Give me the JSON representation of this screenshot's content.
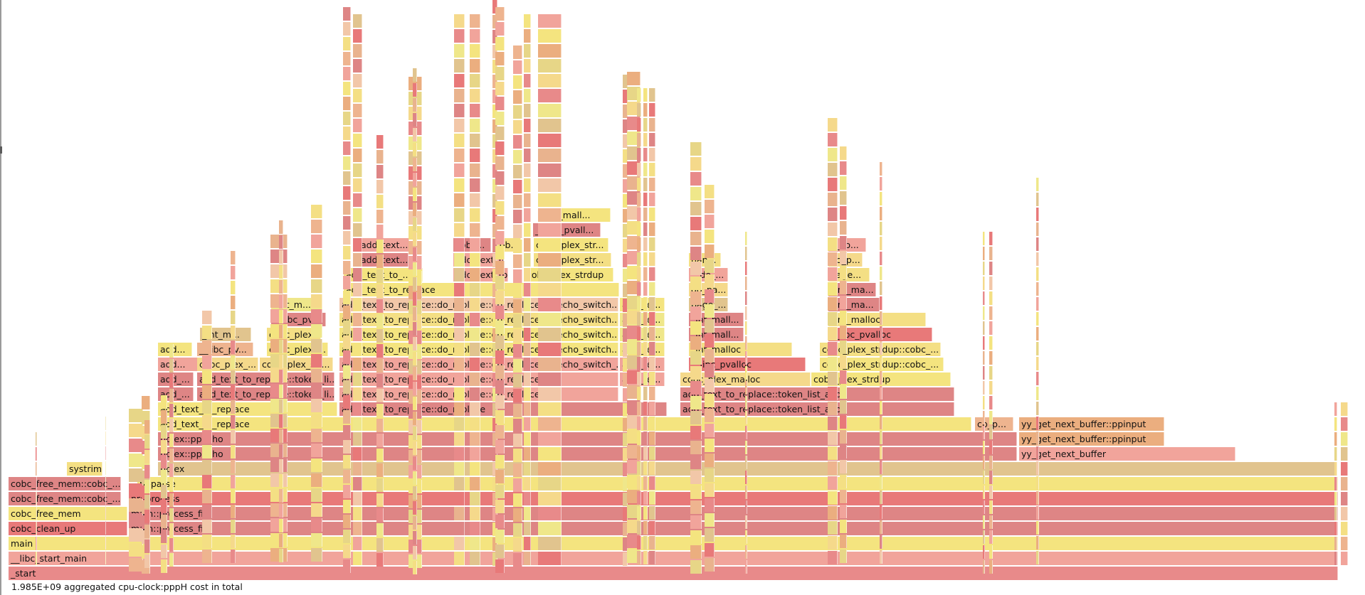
{
  "status": {
    "total_cost": "1.985E+09 aggregated cpu-clock:pppH cost in total"
  },
  "palette": [
    "#f1a49b",
    "#e88a8a",
    "#de8585",
    "#f4e47f",
    "#efe78a",
    "#f2c7a8",
    "#ebae7f",
    "#e1c48e",
    "#f4df84",
    "#e7d687",
    "#e87979",
    "#eeb48f",
    "#f5d98b",
    "#e9b38e"
  ],
  "frames": [
    {
      "label": "_start",
      "level": 0
    },
    {
      "label": "__libc_start_main",
      "level": 1
    },
    {
      "label": "main",
      "level": 2
    },
    {
      "label": "cobc_clean_up",
      "level": 3
    },
    {
      "label": "main::process_file",
      "level": 3
    },
    {
      "label": "cobc_free_mem",
      "level": 4
    },
    {
      "label": "main::process_file",
      "level": 4
    },
    {
      "label": "cobc_free_mem::cobc_...",
      "level": 5
    },
    {
      "label": "preprocess",
      "level": 5
    },
    {
      "label": "cobc_free_mem::cobc_...",
      "level": 6
    },
    {
      "label": "ppparse",
      "level": 6
    },
    {
      "label": "systrim",
      "level": 7
    },
    {
      "label": "pplex",
      "level": 7
    },
    {
      "label": "pplex::ppecho",
      "level": 8
    },
    {
      "label": "yy_get_next_buffer",
      "level": 8
    },
    {
      "label": "pplex::ppecho",
      "level": 9
    },
    {
      "label": "yy_get_next_buffer::ppinput",
      "level": 9
    },
    {
      "label": "add_text_to_replace",
      "level": 10
    },
    {
      "label": "cb_p...",
      "level": 10
    },
    {
      "label": "yy_get_next_buffer::ppinput",
      "level": 10
    },
    {
      "label": "add_text_to_replace",
      "level": 11
    },
    {
      "label": "add_text_to_replace::do_replace",
      "level": 11
    },
    {
      "label": "add_text_to_replace::token_list_add",
      "level": 11
    },
    {
      "label": "add_...",
      "level": 12
    },
    {
      "label": "add_text_to_replace::token_li...",
      "level": 12
    },
    {
      "label": "add_text_to_replace::do_replace::do_replace",
      "level": 12
    },
    {
      "label": "add_text_to_replace::token_list_add",
      "level": 12
    },
    {
      "label": "add_...",
      "level": 13
    },
    {
      "label": "add_text_to_replace::token_li...",
      "level": 13
    },
    {
      "label": "add_text_to_replace::do_replace::do_replace",
      "level": 13
    },
    {
      "label": "add_te...",
      "level": 13
    },
    {
      "label": "cobc_plex_malloc",
      "level": 13
    },
    {
      "label": "cobc_plex_strdup",
      "level": 13
    },
    {
      "label": "add...",
      "level": 14
    },
    {
      "label": "cobc_plex_...",
      "level": 14
    },
    {
      "label": "cobc_plex_str...",
      "level": 14
    },
    {
      "label": "add_text_to_replace::do_replace::do_replace::ppecho_switch_...",
      "level": 14
    },
    {
      "label": "add_te...",
      "level": 14
    },
    {
      "label": "__libc_pvalloc",
      "level": 14
    },
    {
      "label": "cobc_plex_strdup::cobc_...",
      "level": 14
    },
    {
      "label": "add...",
      "level": 15
    },
    {
      "label": "__libc_pv...",
      "level": 15
    },
    {
      "label": "cobc_plex_...",
      "level": 15
    },
    {
      "label": "add_text_to_replace::do_replace::do_replace::ppecho_switch...",
      "level": 15
    },
    {
      "label": "add_te...",
      "level": 15
    },
    {
      "label": "_int_malloc",
      "level": 15
    },
    {
      "label": "cobc_plex_strdup::cobc_...",
      "level": 15
    },
    {
      "label": "_int_m...",
      "level": 16
    },
    {
      "label": "cobc_plex_...",
      "level": 16
    },
    {
      "label": "add_text_to_replace::do_replace::do_replace::ppecho_switch...",
      "level": 16
    },
    {
      "label": "add_te...",
      "level": 16
    },
    {
      "label": "_int_mall...",
      "level": 16
    },
    {
      "label": "__libc_pvalloc",
      "level": 16
    },
    {
      "label": "__libc_pv...",
      "level": 17
    },
    {
      "label": "add_text_to_replace::do_replace::do_replace::ppecho_switch...",
      "level": 17
    },
    {
      "label": "add_te...",
      "level": 17
    },
    {
      "label": "_int_mall...",
      "level": 17
    },
    {
      "label": "_int_malloc",
      "level": 17
    },
    {
      "label": "_int_m...",
      "level": 18
    },
    {
      "label": "add_text_to_replace::do_replace::do_replace::ppecho_switch...",
      "level": 18
    },
    {
      "label": "add_te...",
      "level": 18
    },
    {
      "label": "page_...",
      "level": 18
    },
    {
      "label": "_int_ma...",
      "level": 18
    },
    {
      "label": "add_text_to_replace",
      "level": 19
    },
    {
      "label": "do_pa...",
      "level": 19
    },
    {
      "label": "_int_ma...",
      "level": 19
    },
    {
      "label": "add_text_to_...",
      "level": 20
    },
    {
      "label": "add_text_to_...",
      "level": 20
    },
    {
      "label": "cobc_plex_strdup",
      "level": 20
    },
    {
      "label": "__do_...",
      "level": 20
    },
    {
      "label": "page...",
      "level": 20
    },
    {
      "label": "add_text...",
      "level": 21
    },
    {
      "label": "add_text_to_...",
      "level": 21
    },
    {
      "label": "cobc_plex_str...",
      "level": 21
    },
    {
      "label": "han...",
      "level": 21
    },
    {
      "label": "do_p...",
      "level": 21
    },
    {
      "label": "add_text...",
      "level": 22
    },
    {
      "label": "cobc...",
      "level": 22
    },
    {
      "label": "cob...",
      "level": 22
    },
    {
      "label": "cobc_plex_str...",
      "level": 22
    },
    {
      "label": "__do...",
      "level": 22
    },
    {
      "label": "__libc_pvall...",
      "level": 23
    },
    {
      "label": "_int_mall...",
      "level": 24
    }
  ]
}
